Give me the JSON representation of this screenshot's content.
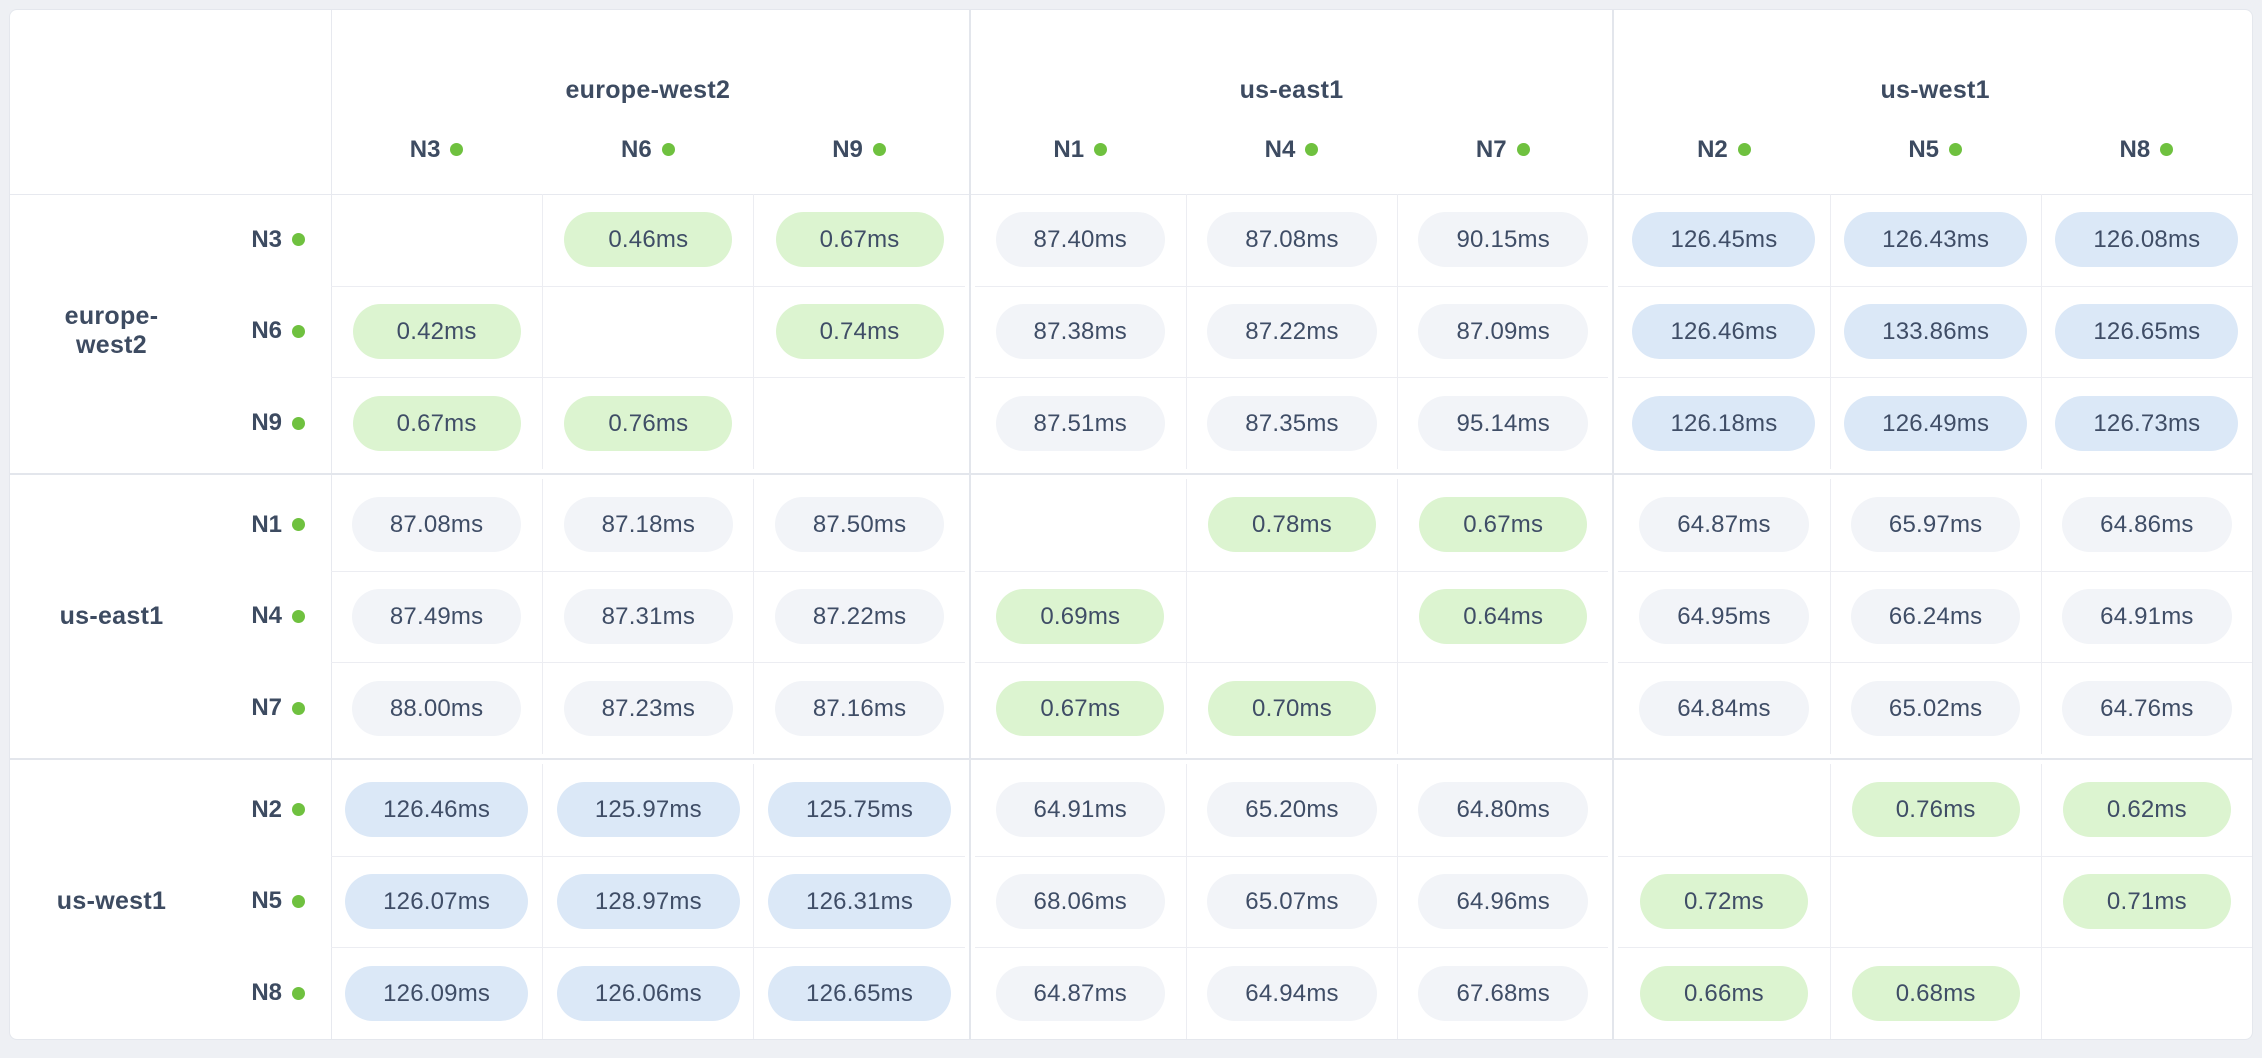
{
  "colors": {
    "page_background": "#eef0f4",
    "card_background": "#ffffff",
    "text": "#3f4d66",
    "pill_low_bg": "#dcf4d0",
    "pill_mid_bg": "#f2f4f8",
    "pill_high_bg": "#dbe8f7",
    "status_dot": "#6fc13f",
    "grid_line": "#ecedf2",
    "group_line": "#e3e6ec",
    "card_border": "#e4e7ed"
  },
  "matrix": {
    "unit": "ms",
    "regions": [
      {
        "name": "europe-west2",
        "nodes": [
          "N3",
          "N6",
          "N9"
        ]
      },
      {
        "name": "us-east1",
        "nodes": [
          "N1",
          "N4",
          "N7"
        ]
      },
      {
        "name": "us-west1",
        "nodes": [
          "N2",
          "N5",
          "N8"
        ]
      }
    ],
    "rows": [
      {
        "node": "N3",
        "values": [
          "",
          "0.46ms",
          "0.67ms",
          "87.40ms",
          "87.08ms",
          "90.15ms",
          "126.45ms",
          "126.43ms",
          "126.08ms"
        ]
      },
      {
        "node": "N6",
        "values": [
          "0.42ms",
          "",
          "0.74ms",
          "87.38ms",
          "87.22ms",
          "87.09ms",
          "126.46ms",
          "133.86ms",
          "126.65ms"
        ]
      },
      {
        "node": "N9",
        "values": [
          "0.67ms",
          "0.76ms",
          "",
          "87.51ms",
          "87.35ms",
          "95.14ms",
          "126.18ms",
          "126.49ms",
          "126.73ms"
        ]
      },
      {
        "node": "N1",
        "values": [
          "87.08ms",
          "87.18ms",
          "87.50ms",
          "",
          "0.78ms",
          "0.67ms",
          "64.87ms",
          "65.97ms",
          "64.86ms"
        ]
      },
      {
        "node": "N4",
        "values": [
          "87.49ms",
          "87.31ms",
          "87.22ms",
          "0.69ms",
          "",
          "0.64ms",
          "64.95ms",
          "66.24ms",
          "64.91ms"
        ]
      },
      {
        "node": "N7",
        "values": [
          "88.00ms",
          "87.23ms",
          "87.16ms",
          "0.67ms",
          "0.70ms",
          "",
          "64.84ms",
          "65.02ms",
          "64.76ms"
        ]
      },
      {
        "node": "N2",
        "values": [
          "126.46ms",
          "125.97ms",
          "125.75ms",
          "64.91ms",
          "65.20ms",
          "64.80ms",
          "",
          "0.76ms",
          "0.62ms"
        ]
      },
      {
        "node": "N5",
        "values": [
          "126.07ms",
          "128.97ms",
          "126.31ms",
          "68.06ms",
          "65.07ms",
          "64.96ms",
          "0.72ms",
          "",
          "0.71ms"
        ]
      },
      {
        "node": "N8",
        "values": [
          "126.09ms",
          "126.06ms",
          "126.65ms",
          "64.87ms",
          "64.94ms",
          "67.68ms",
          "0.66ms",
          "0.68ms",
          ""
        ]
      }
    ]
  }
}
